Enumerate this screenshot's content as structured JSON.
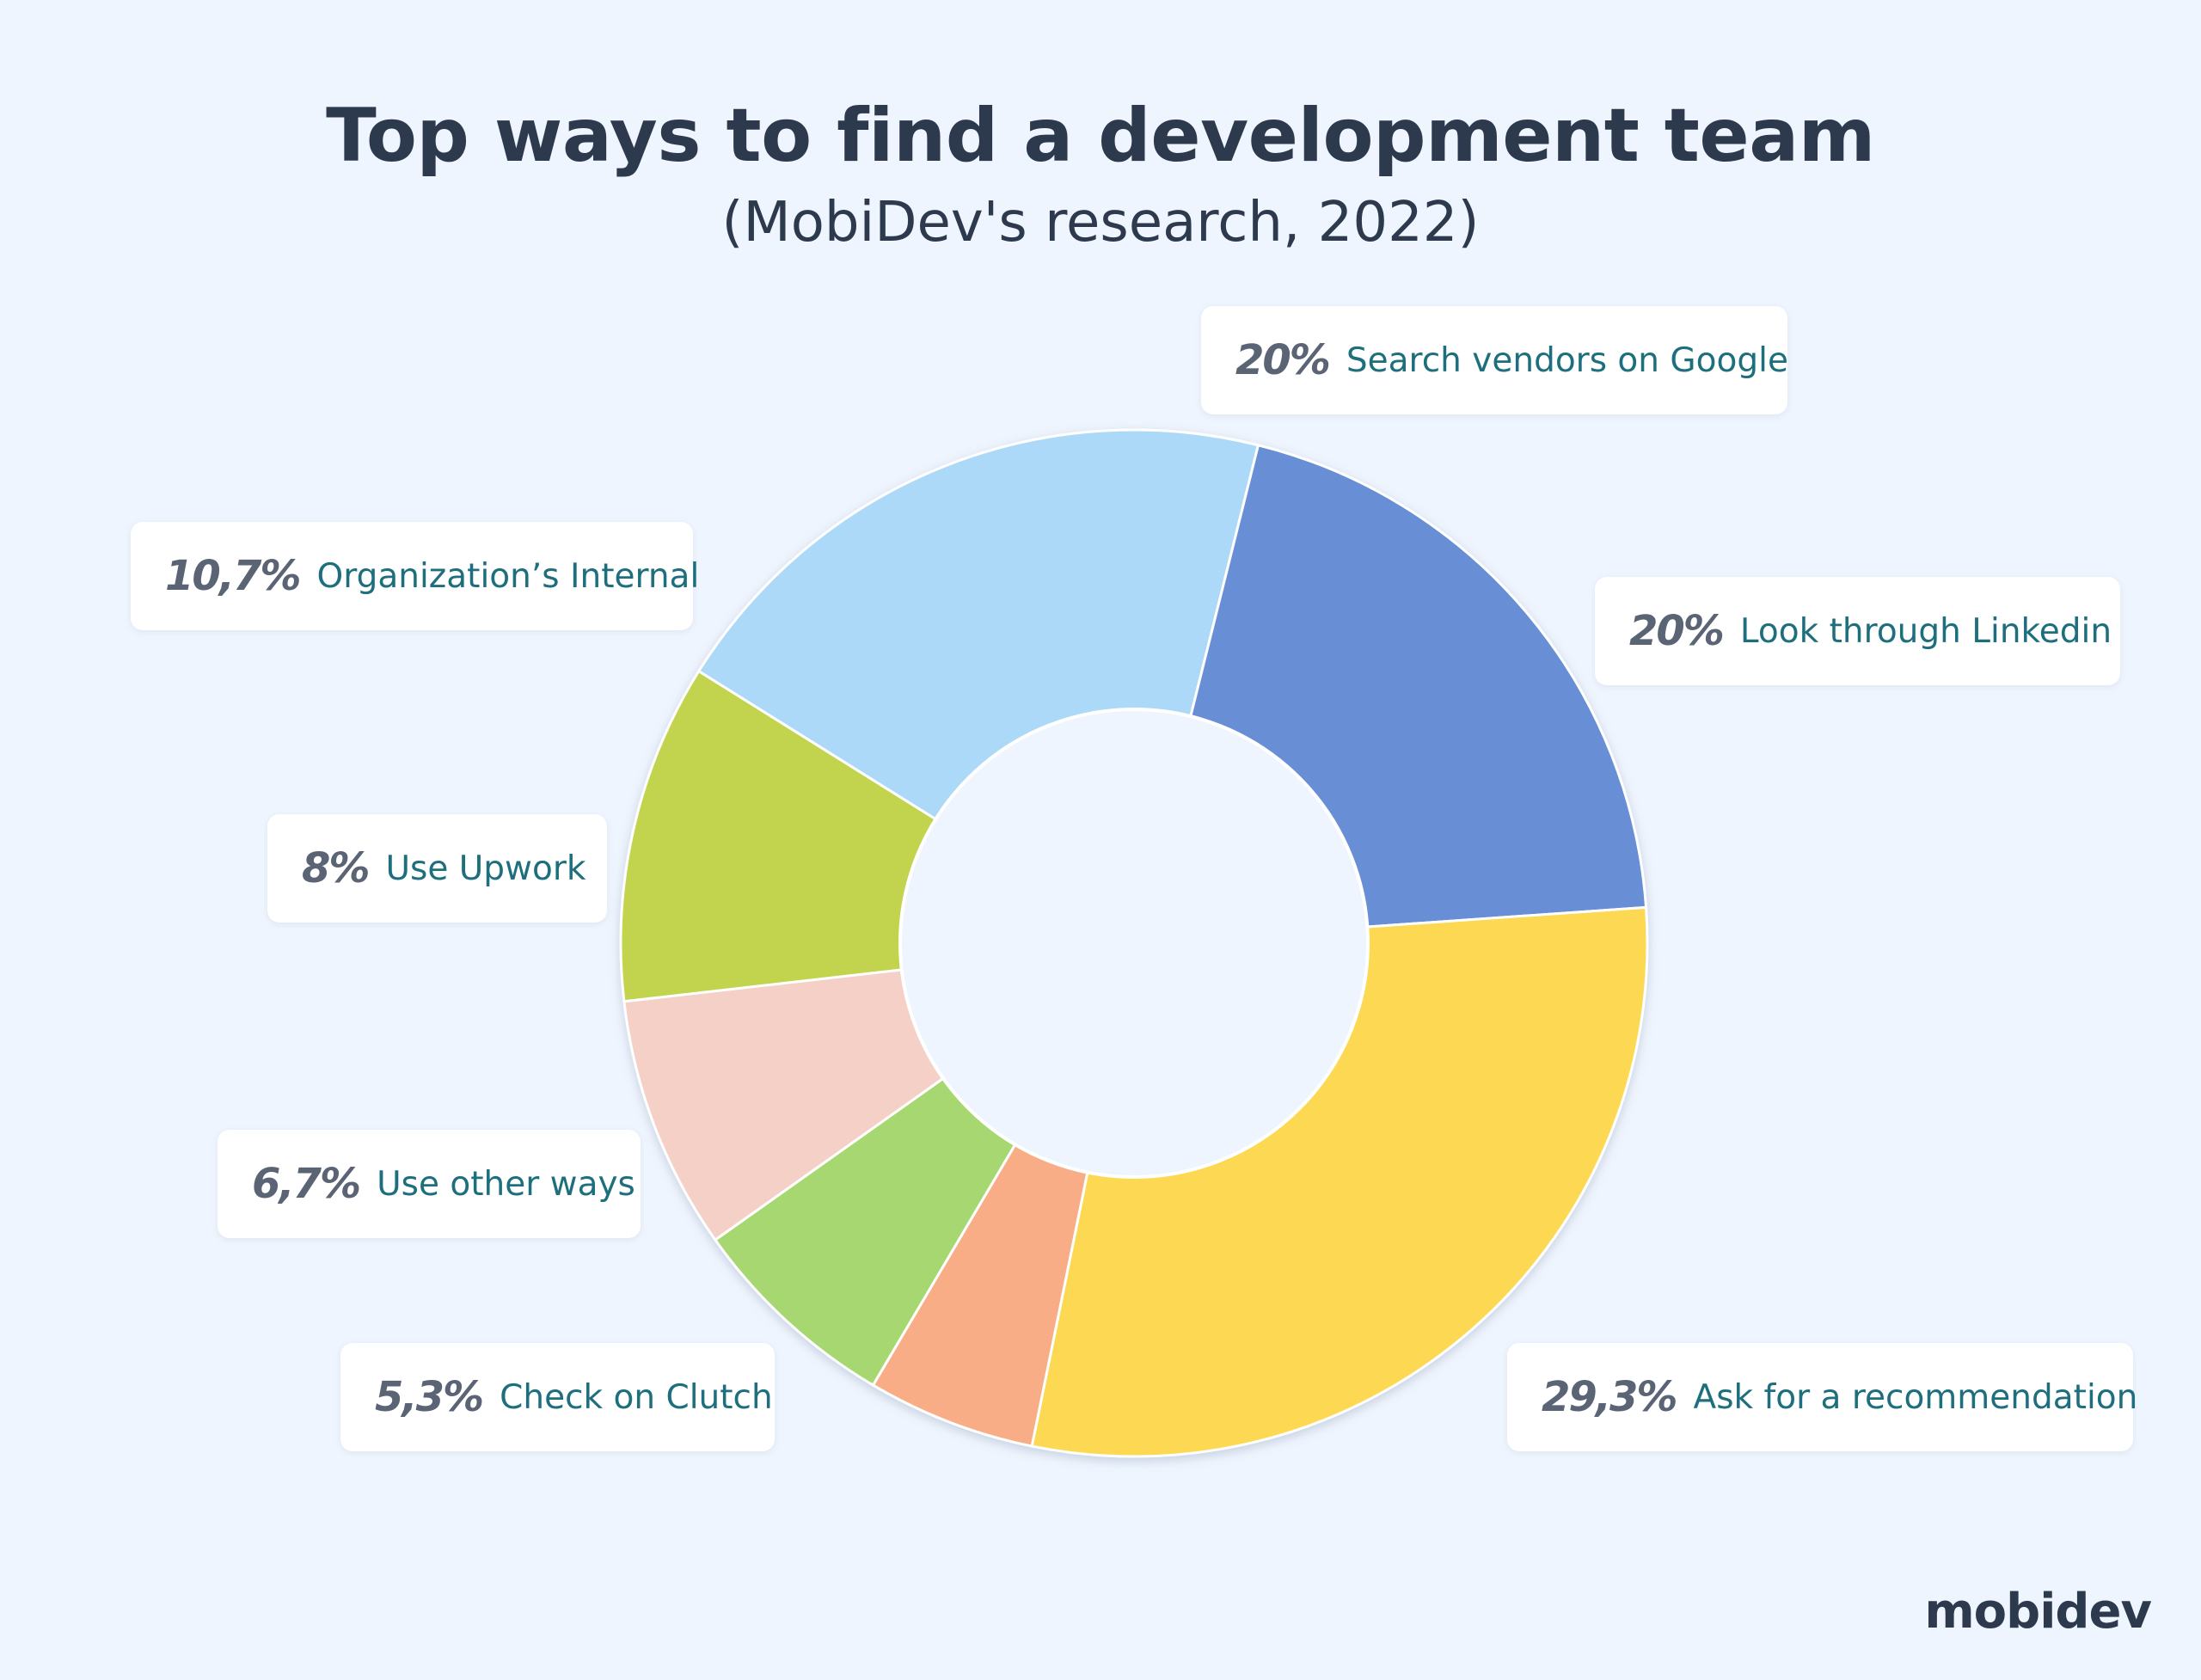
{
  "title": "Top ways to find a development team",
  "subtitle": "(MobiDev's research, 2022)",
  "logo": "mobidev",
  "chart_data": {
    "type": "pie",
    "donut": true,
    "slices": [
      {
        "label": "Search vendors on Google",
        "pct_text": "20%",
        "value": 20,
        "color": "#add9f8"
      },
      {
        "label": "Look through Linkedin",
        "pct_text": "20%",
        "value": 20,
        "color": "#688ed6"
      },
      {
        "label": "Ask for a recommendation",
        "pct_text": "29,3%",
        "value": 29.3,
        "color": "#fcd853"
      },
      {
        "label": "Check on Clutch",
        "pct_text": "5,3%",
        "value": 5.3,
        "color": "#f9ad86"
      },
      {
        "label": "Use other ways",
        "pct_text": "6,7%",
        "value": 6.7,
        "color": "#a7d771"
      },
      {
        "label": "Use Upwork",
        "pct_text": "8%",
        "value": 8,
        "color": "#f4d0c7"
      },
      {
        "label": "Organization’s Internal",
        "pct_text": "10,7%",
        "value": 10.7,
        "color": "#c2d44d"
      }
    ]
  }
}
